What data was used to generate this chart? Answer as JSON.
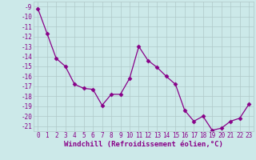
{
  "x": [
    0,
    1,
    2,
    3,
    4,
    5,
    6,
    7,
    8,
    9,
    10,
    11,
    12,
    13,
    14,
    15,
    16,
    17,
    18,
    19,
    20,
    21,
    22,
    23
  ],
  "y": [
    -9.2,
    -11.7,
    -14.2,
    -15.0,
    -16.8,
    -17.2,
    -17.3,
    -18.9,
    -17.8,
    -17.8,
    -16.2,
    -13.0,
    -14.4,
    -15.1,
    -16.0,
    -16.8,
    -19.4,
    -20.5,
    -20.0,
    -21.4,
    -21.2,
    -20.5,
    -20.2,
    -18.8
  ],
  "line_color": "#880088",
  "marker": "D",
  "marker_size": 2.5,
  "bg_color": "#cce9e9",
  "grid_color": "#b0c8c8",
  "xlabel": "Windchill (Refroidissement éolien,°C)",
  "xlim": [
    -0.5,
    23.5
  ],
  "ylim": [
    -21.5,
    -8.5
  ],
  "yticks": [
    -9,
    -10,
    -11,
    -12,
    -13,
    -14,
    -15,
    -16,
    -17,
    -18,
    -19,
    -20,
    -21
  ],
  "xticks": [
    0,
    1,
    2,
    3,
    4,
    5,
    6,
    7,
    8,
    9,
    10,
    11,
    12,
    13,
    14,
    15,
    16,
    17,
    18,
    19,
    20,
    21,
    22,
    23
  ],
  "tick_fontsize": 5.5,
  "label_fontsize": 6.5
}
